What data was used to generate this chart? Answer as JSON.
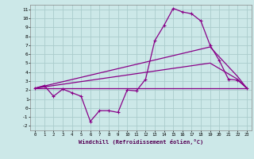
{
  "xlabel": "Windchill (Refroidissement éolien,°C)",
  "background_color": "#cce8e8",
  "grid_color": "#aacccc",
  "line_color": "#880088",
  "xlim": [
    -0.5,
    23.5
  ],
  "ylim": [
    -2.5,
    11.5
  ],
  "yticks": [
    -2,
    -1,
    0,
    1,
    2,
    3,
    4,
    5,
    6,
    7,
    8,
    9,
    10,
    11
  ],
  "xticks": [
    0,
    1,
    2,
    3,
    4,
    5,
    6,
    7,
    8,
    9,
    10,
    11,
    12,
    13,
    14,
    15,
    16,
    17,
    18,
    19,
    20,
    21,
    22,
    23
  ],
  "series1_x": [
    0,
    1,
    2,
    3,
    4,
    5,
    6,
    7,
    8,
    9,
    10,
    11,
    12,
    13,
    14,
    15,
    16,
    17,
    18,
    19,
    20,
    21,
    22,
    23
  ],
  "series1_y": [
    2.2,
    2.5,
    1.3,
    2.1,
    1.7,
    1.3,
    -1.5,
    -0.3,
    -0.3,
    -0.5,
    2.0,
    1.9,
    3.2,
    7.5,
    9.2,
    11.1,
    10.7,
    10.5,
    9.7,
    7.0,
    5.3,
    3.2,
    3.1,
    2.2
  ],
  "series2_x": [
    0,
    23
  ],
  "series2_y": [
    2.2,
    2.2
  ],
  "series3_x": [
    0,
    19,
    22,
    23
  ],
  "series3_y": [
    2.2,
    5.0,
    3.2,
    2.2
  ],
  "series4_x": [
    0,
    19,
    22,
    23
  ],
  "series4_y": [
    2.2,
    6.8,
    3.5,
    2.2
  ]
}
